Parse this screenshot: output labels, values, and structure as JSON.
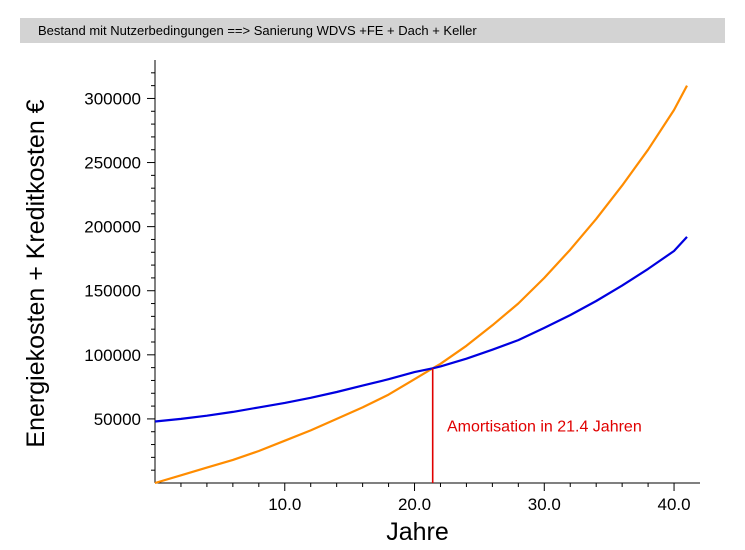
{
  "chart_data": {
    "type": "line",
    "title": "Bestand mit Nutzerbedingungen ==> Sanierung WDVS +FE + Dach + Keller",
    "xlabel": "Jahre",
    "ylabel": "Energiekosten + Kreditkosten €",
    "xlim": [
      0,
      42
    ],
    "ylim": [
      0,
      330000
    ],
    "x_ticks": [
      10,
      20,
      30,
      40
    ],
    "x_tick_labels": [
      "10.0",
      "20.0",
      "30.0",
      "40.0"
    ],
    "y_ticks": [
      50000,
      100000,
      150000,
      200000,
      250000,
      300000
    ],
    "y_tick_labels": [
      "50000",
      "100000",
      "150000",
      "200000",
      "250000",
      "300000"
    ],
    "grid": false,
    "series": [
      {
        "color": "#ff8c00",
        "x": [
          0,
          2,
          4,
          6,
          8,
          10,
          12,
          14,
          16,
          18,
          20,
          21.4,
          22,
          24,
          26,
          28,
          30,
          32,
          34,
          36,
          38,
          40,
          41
        ],
        "y": [
          0,
          6000,
          12000,
          18000,
          25000,
          33000,
          41000,
          50000,
          59000,
          69000,
          81000,
          89500,
          93000,
          107000,
          123000,
          140000,
          160000,
          182000,
          206000,
          232000,
          260000,
          291000,
          310000
        ]
      },
      {
        "color": "#0000e0",
        "x": [
          0,
          2,
          4,
          6,
          8,
          10,
          12,
          14,
          16,
          18,
          20,
          21.4,
          22,
          24,
          26,
          28,
          30,
          32,
          34,
          36,
          38,
          40,
          41
        ],
        "y": [
          48000,
          50000,
          52500,
          55500,
          59000,
          62500,
          66500,
          71000,
          76000,
          81000,
          86500,
          89500,
          91000,
          97000,
          104000,
          111500,
          121000,
          131000,
          142000,
          154000,
          167000,
          181000,
          192000
        ]
      }
    ],
    "marker_line": {
      "x": 21.4,
      "y": 89500,
      "color": "#e00000"
    },
    "annotation": {
      "text": "Amortisation in 21.4 Jahren",
      "x": 22.5,
      "y": 45000,
      "color": "#e00000"
    }
  }
}
